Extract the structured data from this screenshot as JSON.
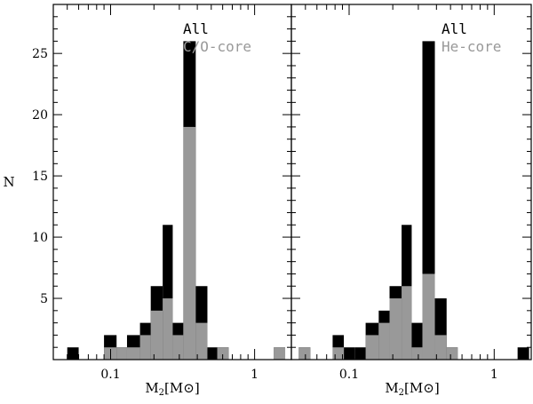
{
  "chart_data": [
    {
      "type": "bar",
      "panel": "left",
      "xlabel_main": "M",
      "xlabel_sub": "2",
      "xlabel_unit": "[M⊙]",
      "ylabel": "N",
      "x_scale": "log",
      "xlim": [
        0.04,
        1.8
      ],
      "ylim": [
        0,
        29
      ],
      "x_ticks": [
        "0.1",
        "1"
      ],
      "y_ticks": [
        "5",
        "10",
        "15",
        "20",
        "25"
      ],
      "legend_position": "top-right",
      "series": [
        {
          "name": "All",
          "color": "#000000",
          "bins": [
            {
              "x0": 0.05,
              "x1": 0.06,
              "count": 1
            },
            {
              "x0": 0.09,
              "x1": 0.11,
              "count": 2
            },
            {
              "x0": 0.11,
              "x1": 0.13,
              "count": 1
            },
            {
              "x0": 0.13,
              "x1": 0.16,
              "count": 2
            },
            {
              "x0": 0.16,
              "x1": 0.19,
              "count": 3
            },
            {
              "x0": 0.19,
              "x1": 0.23,
              "count": 6
            },
            {
              "x0": 0.23,
              "x1": 0.27,
              "count": 11
            },
            {
              "x0": 0.27,
              "x1": 0.32,
              "count": 3
            },
            {
              "x0": 0.32,
              "x1": 0.39,
              "count": 26
            },
            {
              "x0": 0.39,
              "x1": 0.47,
              "count": 6
            },
            {
              "x0": 0.47,
              "x1": 0.55,
              "count": 1
            },
            {
              "x0": 0.55,
              "x1": 0.66,
              "count": 1
            },
            {
              "x0": 1.36,
              "x1": 1.63,
              "count": 1
            }
          ]
        },
        {
          "name": "C/O-core",
          "color": "#999999",
          "bins": [
            {
              "x0": 0.09,
              "x1": 0.11,
              "count": 1
            },
            {
              "x0": 0.11,
              "x1": 0.13,
              "count": 1
            },
            {
              "x0": 0.13,
              "x1": 0.16,
              "count": 1
            },
            {
              "x0": 0.16,
              "x1": 0.19,
              "count": 2
            },
            {
              "x0": 0.19,
              "x1": 0.23,
              "count": 4
            },
            {
              "x0": 0.23,
              "x1": 0.27,
              "count": 5
            },
            {
              "x0": 0.27,
              "x1": 0.32,
              "count": 2
            },
            {
              "x0": 0.32,
              "x1": 0.39,
              "count": 19
            },
            {
              "x0": 0.39,
              "x1": 0.47,
              "count": 3
            },
            {
              "x0": 0.55,
              "x1": 0.66,
              "count": 1
            },
            {
              "x0": 1.36,
              "x1": 1.63,
              "count": 1
            }
          ]
        }
      ]
    },
    {
      "type": "bar",
      "panel": "right",
      "xlabel_main": "M",
      "xlabel_sub": "2",
      "xlabel_unit": "[M⊙]",
      "x_scale": "log",
      "xlim": [
        0.04,
        1.8
      ],
      "ylim": [
        0,
        29
      ],
      "x_ticks": [
        "0.1",
        "1"
      ],
      "legend_position": "top-right",
      "series": [
        {
          "name": "All",
          "color": "#000000",
          "bins": [
            {
              "x0": 0.045,
              "x1": 0.054,
              "count": 1
            },
            {
              "x0": 0.077,
              "x1": 0.092,
              "count": 2
            },
            {
              "x0": 0.092,
              "x1": 0.11,
              "count": 1
            },
            {
              "x0": 0.11,
              "x1": 0.13,
              "count": 1
            },
            {
              "x0": 0.13,
              "x1": 0.16,
              "count": 3
            },
            {
              "x0": 0.16,
              "x1": 0.19,
              "count": 4
            },
            {
              "x0": 0.19,
              "x1": 0.23,
              "count": 6
            },
            {
              "x0": 0.23,
              "x1": 0.27,
              "count": 11
            },
            {
              "x0": 0.27,
              "x1": 0.32,
              "count": 3
            },
            {
              "x0": 0.32,
              "x1": 0.39,
              "count": 26
            },
            {
              "x0": 0.39,
              "x1": 0.47,
              "count": 5
            },
            {
              "x0": 0.47,
              "x1": 0.56,
              "count": 1
            },
            {
              "x0": 1.45,
              "x1": 1.74,
              "count": 1
            }
          ]
        },
        {
          "name": "He-core",
          "color": "#999999",
          "bins": [
            {
              "x0": 0.045,
              "x1": 0.054,
              "count": 1
            },
            {
              "x0": 0.077,
              "x1": 0.092,
              "count": 1
            },
            {
              "x0": 0.13,
              "x1": 0.16,
              "count": 2
            },
            {
              "x0": 0.16,
              "x1": 0.19,
              "count": 3
            },
            {
              "x0": 0.19,
              "x1": 0.23,
              "count": 5
            },
            {
              "x0": 0.23,
              "x1": 0.27,
              "count": 6
            },
            {
              "x0": 0.27,
              "x1": 0.32,
              "count": 1
            },
            {
              "x0": 0.32,
              "x1": 0.39,
              "count": 7
            },
            {
              "x0": 0.39,
              "x1": 0.47,
              "count": 2
            },
            {
              "x0": 0.47,
              "x1": 0.56,
              "count": 1
            }
          ]
        }
      ]
    }
  ]
}
